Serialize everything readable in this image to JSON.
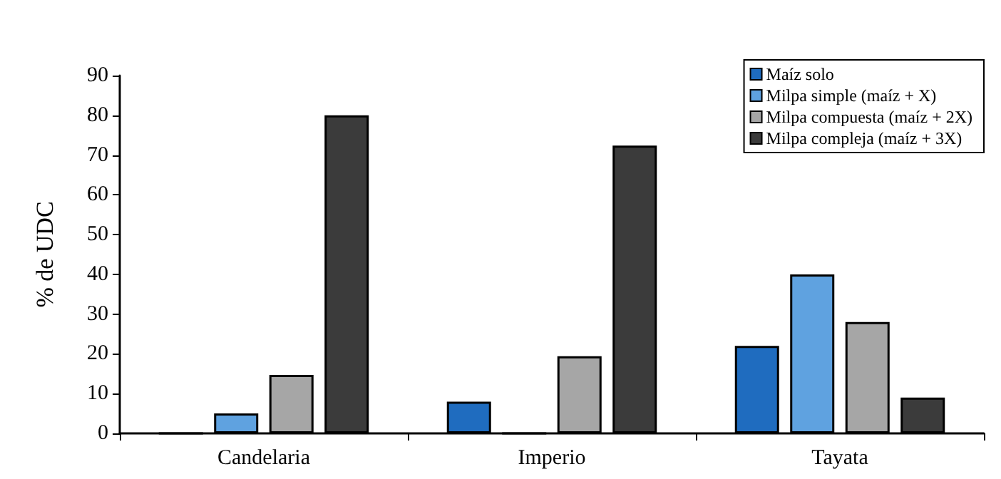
{
  "chart_data": {
    "type": "bar",
    "ylabel": "% de UDC",
    "categories": [
      "Candelaria",
      "Imperio",
      "Tayata"
    ],
    "series": [
      {
        "name": "Maíz solo",
        "color": "#1f6cbf",
        "values": [
          0,
          8,
          22
        ]
      },
      {
        "name": "Milpa simple (maíz + X)",
        "color": "#5fa2e0",
        "values": [
          5,
          0,
          40
        ]
      },
      {
        "name": "Milpa compuesta (maíz + 2X)",
        "color": "#a6a6a6",
        "values": [
          14.7,
          19.4,
          28
        ]
      },
      {
        "name": "Milpa compleja (maíz + 3X)",
        "color": "#3b3b3b",
        "values": [
          80,
          72.4,
          9
        ]
      }
    ],
    "ylim": [
      0,
      90
    ],
    "yticks": [
      0,
      10,
      20,
      30,
      40,
      50,
      60,
      70,
      80,
      90
    ],
    "grid": false,
    "legend": "top right"
  }
}
